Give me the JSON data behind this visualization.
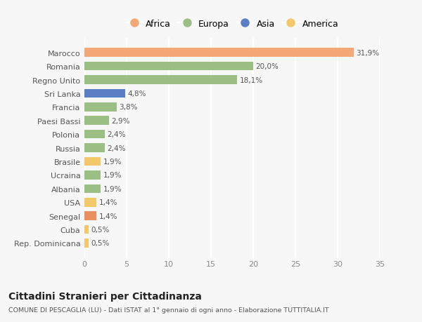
{
  "countries": [
    "Marocco",
    "Romania",
    "Regno Unito",
    "Sri Lanka",
    "Francia",
    "Paesi Bassi",
    "Polonia",
    "Russia",
    "Brasile",
    "Ucraina",
    "Albania",
    "USA",
    "Senegal",
    "Cuba",
    "Rep. Dominicana"
  ],
  "values": [
    31.9,
    20.0,
    18.1,
    4.8,
    3.8,
    2.9,
    2.4,
    2.4,
    1.9,
    1.9,
    1.9,
    1.4,
    1.4,
    0.5,
    0.5
  ],
  "labels": [
    "31,9%",
    "20,0%",
    "18,1%",
    "4,8%",
    "3,8%",
    "2,9%",
    "2,4%",
    "2,4%",
    "1,9%",
    "1,9%",
    "1,9%",
    "1,4%",
    "1,4%",
    "0,5%",
    "0,5%"
  ],
  "continents": [
    "Africa",
    "Europa",
    "Europa",
    "Asia",
    "Europa",
    "Europa",
    "Europa",
    "Europa",
    "America",
    "Europa",
    "Europa",
    "America",
    "Africa",
    "America",
    "America"
  ],
  "colors": {
    "Africa": "#F4A878",
    "Europa": "#9BBF85",
    "Asia": "#5B7EC4",
    "America": "#F2C86A"
  },
  "senegal_color": "#E89060",
  "background_color": "#f7f7f7",
  "title": "Cittadini Stranieri per Cittadinanza",
  "subtitle": "COMUNE DI PESCAGLIA (LU) - Dati ISTAT al 1° gennaio di ogni anno - Elaborazione TUTTITALIA.IT",
  "xlim": [
    0,
    35
  ],
  "xticks": [
    0,
    5,
    10,
    15,
    20,
    25,
    30,
    35
  ],
  "legend_order": [
    "Africa",
    "Europa",
    "Asia",
    "America"
  ]
}
